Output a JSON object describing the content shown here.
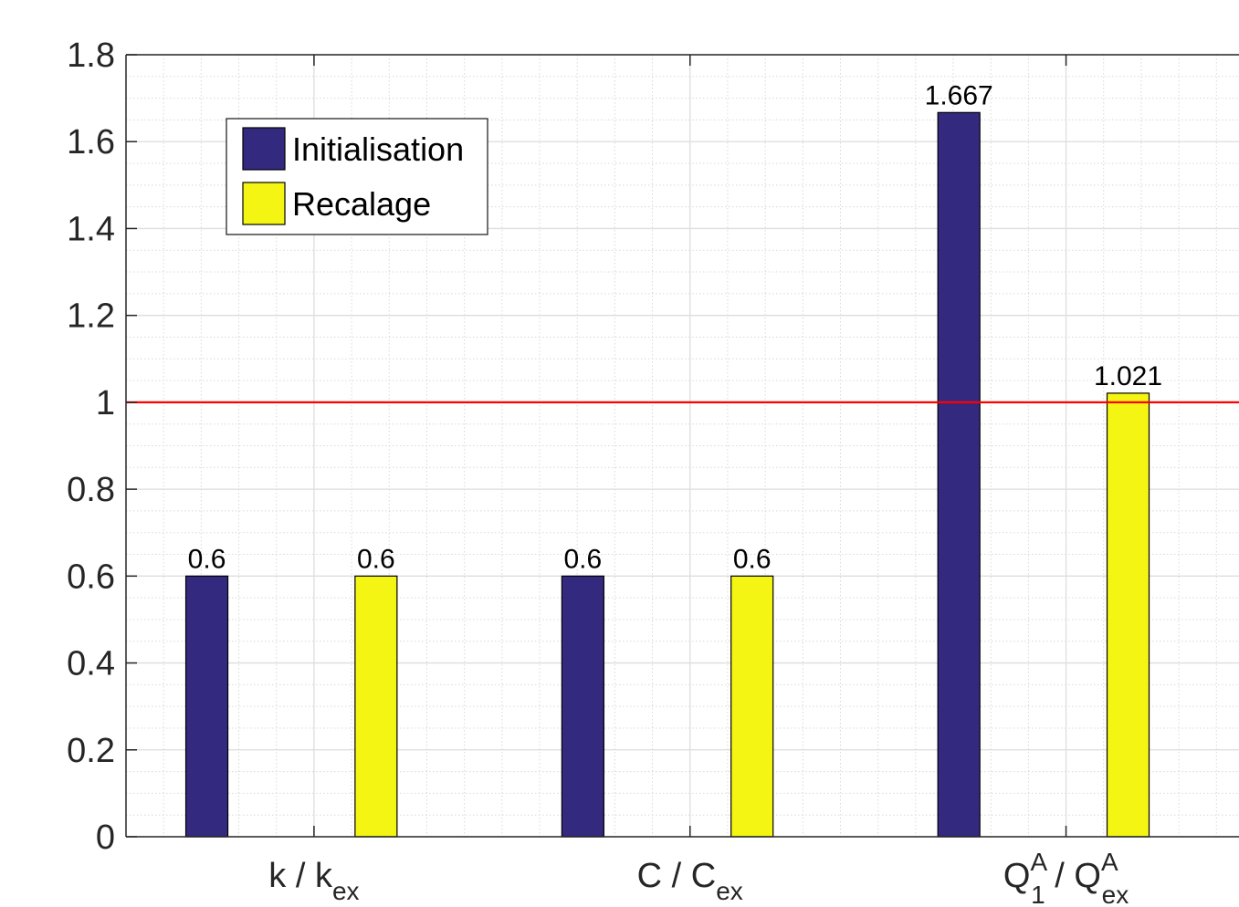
{
  "chart_data": {
    "type": "bar",
    "categories": [
      {
        "base": "k / k",
        "sub": "ex",
        "sup": ""
      },
      {
        "base": "C / C",
        "sub": "ex",
        "sup": ""
      },
      {
        "base": "Q",
        "sub": "1",
        "sup": "A",
        "mid": " / Q",
        "sub2": "ex",
        "sup2": "A"
      }
    ],
    "category_labels": [
      "k / k_ex",
      "C / C_ex",
      "Q_1^A / Q_ex^A"
    ],
    "series": [
      {
        "name": "Initialisation",
        "values": [
          0.6,
          0.6,
          1.667
        ],
        "labels": [
          "0.6",
          "0.6",
          "1.667"
        ],
        "color": "#332a80"
      },
      {
        "name": "Recalage",
        "values": [
          0.6,
          0.6,
          1.021
        ],
        "labels": [
          "0.6",
          "0.6",
          "1.021"
        ],
        "color": "#f5f514"
      }
    ],
    "reference_line": {
      "y": 1,
      "color": "#ff0000"
    },
    "ylim": [
      0,
      1.8
    ],
    "yticks": [
      "0",
      "0.2",
      "0.4",
      "0.6",
      "0.8",
      "1",
      "1.2",
      "1.4",
      "1.6",
      "1.8"
    ],
    "grid": true,
    "minor_grid": true,
    "legend_position": "top-left",
    "title": "",
    "xlabel": "",
    "ylabel": ""
  }
}
